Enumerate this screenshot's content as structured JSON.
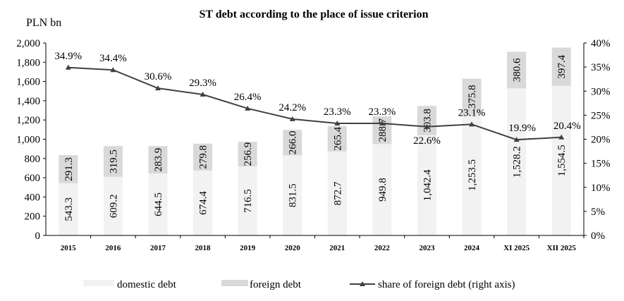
{
  "chart_data": {
    "type": "bar",
    "title": "ST debt according to the place of issue criterion",
    "ylabel": "PLN bn",
    "ylim": [
      0,
      2000
    ],
    "yticks": [
      "0",
      "200",
      "400",
      "600",
      "800",
      "1,000",
      "1,200",
      "1,400",
      "1,600",
      "1,800",
      "2,000"
    ],
    "y2lim": [
      0,
      40
    ],
    "y2ticks": [
      "0%",
      "5%",
      "10%",
      "15%",
      "20%",
      "25%",
      "30%",
      "35%",
      "40%"
    ],
    "categories": [
      "2015",
      "2016",
      "2017",
      "2018",
      "2019",
      "2020",
      "2021",
      "2022",
      "2023",
      "2024",
      "XI 2025",
      "XII 2025"
    ],
    "series": [
      {
        "name": "domestic debt",
        "kind": "stacked-bar",
        "color": "#f2f2f2",
        "values": [
          543.3,
          609.2,
          644.5,
          674.4,
          716.5,
          831.5,
          872.7,
          949.8,
          1042.4,
          1253.5,
          1528.2,
          1554.5
        ],
        "labels": [
          "543.3",
          "609.2",
          "644.5",
          "674.4",
          "716.5",
          "831.5",
          "872.7",
          "949.8",
          "1,042.4",
          "1,253.5",
          "1,528.2",
          "1,554.5"
        ]
      },
      {
        "name": "foreign debt",
        "kind": "stacked-bar",
        "color": "#d9d9d9",
        "values": [
          291.3,
          319.5,
          283.9,
          279.8,
          256.9,
          266.0,
          265.4,
          288.7,
          303.8,
          375.8,
          380.6,
          397.4
        ],
        "labels": [
          "291.3",
          "319.5",
          "283.9",
          "279.8",
          "256.9",
          "266.0",
          "265.4",
          "288.7",
          "303.8",
          "375.8",
          "380.6",
          "397.4"
        ]
      },
      {
        "name": "share of foreign debt (right axis)",
        "kind": "line",
        "axis": "right",
        "color": "#404040",
        "values": [
          34.9,
          34.4,
          30.6,
          29.3,
          26.4,
          24.2,
          23.3,
          23.3,
          22.6,
          23.1,
          19.9,
          20.4
        ],
        "labels": [
          "34.9%",
          "34.4%",
          "30.6%",
          "29.3%",
          "26.4%",
          "24.2%",
          "23.3%",
          "23.3%",
          "22.6%",
          "23.1%",
          "19.9%",
          "20.4%"
        ]
      }
    ],
    "legend": "bottom",
    "grid": false
  }
}
